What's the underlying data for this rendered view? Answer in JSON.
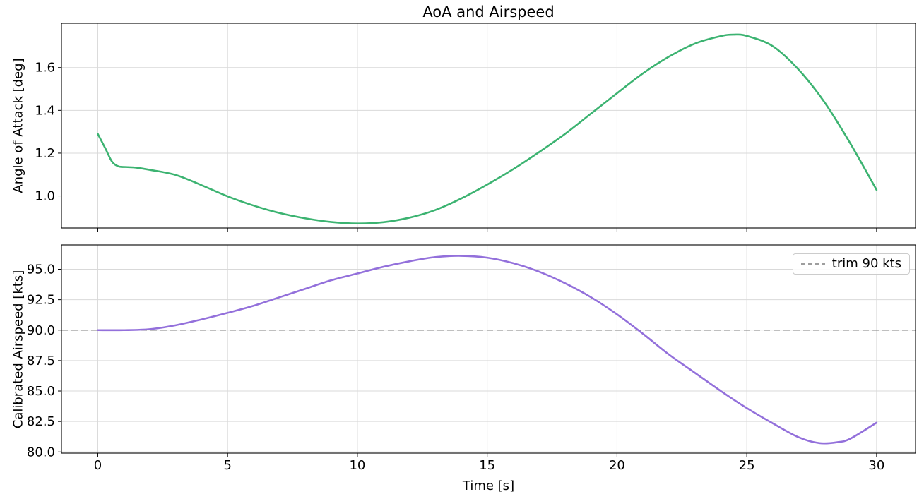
{
  "figure": {
    "title": "AoA and Airspeed",
    "background": "#ffffff",
    "text_color": "#000000",
    "grid_color": "#d9d9d9",
    "spine_color": "#000000"
  },
  "chart_data": [
    {
      "type": "line",
      "ylabel": "Angle of Attack [deg]",
      "xlabel": "",
      "xlim": [
        -1.4,
        31.5
      ],
      "ylim": [
        0.85,
        1.807
      ],
      "grid": true,
      "show_xtick_labels": false,
      "xticks": [
        0,
        5,
        10,
        15,
        20,
        25,
        30
      ],
      "xtick_labels": [
        "0",
        "5",
        "10",
        "15",
        "20",
        "25",
        "30"
      ],
      "yticks": [
        1.0,
        1.2,
        1.4,
        1.6
      ],
      "ytick_labels": [
        "1.0",
        "1.2",
        "1.4",
        "1.6"
      ],
      "series": [
        {
          "name": "angle-of-attack",
          "color": "#3cb371",
          "line_width": 2.6,
          "x": [
            0,
            0.3,
            0.55,
            0.8,
            1.1,
            1.5,
            2,
            3,
            4,
            5,
            6,
            7,
            8,
            9,
            10,
            11,
            12,
            13,
            14,
            15,
            16,
            17,
            18,
            19,
            20,
            21,
            22,
            23,
            24,
            24.5,
            25,
            26,
            27,
            28,
            29,
            30
          ],
          "y": [
            1.29,
            1.22,
            1.16,
            1.138,
            1.135,
            1.132,
            1.122,
            1.098,
            1.05,
            0.998,
            0.955,
            0.92,
            0.895,
            0.878,
            0.871,
            0.877,
            0.898,
            0.934,
            0.988,
            1.053,
            1.125,
            1.205,
            1.29,
            1.385,
            1.48,
            1.573,
            1.651,
            1.712,
            1.747,
            1.754,
            1.748,
            1.7,
            1.59,
            1.437,
            1.243,
            1.028
          ]
        }
      ]
    },
    {
      "type": "line",
      "ylabel": "Calibrated Airspeed [kts]",
      "xlabel": "Time [s]",
      "xlim": [
        -1.4,
        31.5
      ],
      "ylim": [
        79.9,
        97.0
      ],
      "grid": true,
      "show_xtick_labels": true,
      "xticks": [
        0,
        5,
        10,
        15,
        20,
        25,
        30
      ],
      "xtick_labels": [
        "0",
        "5",
        "10",
        "15",
        "20",
        "25",
        "30"
      ],
      "yticks": [
        80.0,
        82.5,
        85.0,
        87.5,
        90.0,
        92.5,
        95.0
      ],
      "ytick_labels": [
        "80.0",
        "82.5",
        "85.0",
        "87.5",
        "90.0",
        "92.5",
        "95.0"
      ],
      "reference_line": {
        "value": 90,
        "color": "#7f7f7f",
        "dash": "9 5",
        "line_width": 1.6
      },
      "legend": {
        "position": "upper right",
        "entries": [
          {
            "label": "trim 90 kts",
            "color": "#7f7f7f",
            "dashed": true
          }
        ]
      },
      "series": [
        {
          "name": "calibrated-airspeed",
          "color": "#9370db",
          "line_width": 2.6,
          "x": [
            0,
            1,
            2,
            3,
            4,
            5,
            6,
            7,
            8,
            9,
            10,
            11,
            12,
            13,
            14,
            15,
            16,
            17,
            18,
            19,
            20,
            21,
            22,
            23,
            24,
            25,
            26,
            27,
            27.8,
            28.5,
            29,
            30
          ],
          "y": [
            90.0,
            90.0,
            90.08,
            90.4,
            90.88,
            91.42,
            92.0,
            92.7,
            93.4,
            94.1,
            94.65,
            95.2,
            95.65,
            96.0,
            96.1,
            95.95,
            95.5,
            94.8,
            93.85,
            92.7,
            91.3,
            89.7,
            88.0,
            86.5,
            85.0,
            83.6,
            82.35,
            81.2,
            80.72,
            80.8,
            81.1,
            82.4
          ]
        }
      ]
    }
  ]
}
